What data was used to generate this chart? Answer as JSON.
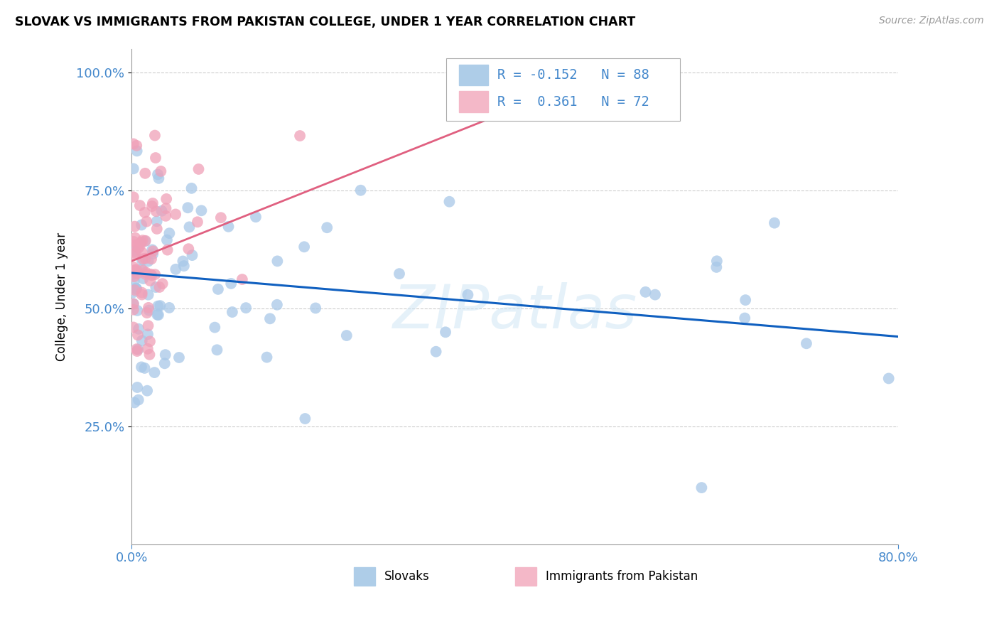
{
  "title": "SLOVAK VS IMMIGRANTS FROM PAKISTAN COLLEGE, UNDER 1 YEAR CORRELATION CHART",
  "source": "Source: ZipAtlas.com",
  "ylabel_label": "College, Under 1 year",
  "legend_labels": [
    "Slovaks",
    "Immigrants from Pakistan"
  ],
  "blue_R": -0.152,
  "blue_N": 88,
  "pink_R": 0.361,
  "pink_N": 72,
  "blue_color": "#a8c8e8",
  "pink_color": "#f0a0b8",
  "blue_line_color": "#1060c0",
  "pink_line_color": "#e06080",
  "watermark": "ZIPatlas",
  "background_color": "#ffffff",
  "tick_color": "#4488cc",
  "grid_color": "#cccccc",
  "xmin": 0.0,
  "xmax": 0.8,
  "ymin": 0.0,
  "ymax": 1.05,
  "yticks": [
    0.25,
    0.5,
    0.75,
    1.0
  ],
  "ytick_labels": [
    "25.0%",
    "50.0%",
    "75.0%",
    "100.0%"
  ],
  "xticks": [
    0.0,
    0.8
  ],
  "xtick_labels": [
    "0.0%",
    "80.0%"
  ],
  "blue_line_x0": 0.0,
  "blue_line_x1": 0.8,
  "blue_line_y0": 0.575,
  "blue_line_y1": 0.44,
  "pink_line_x0": 0.0,
  "pink_line_x1": 0.52,
  "pink_line_y0": 0.6,
  "pink_line_y1": 1.02
}
